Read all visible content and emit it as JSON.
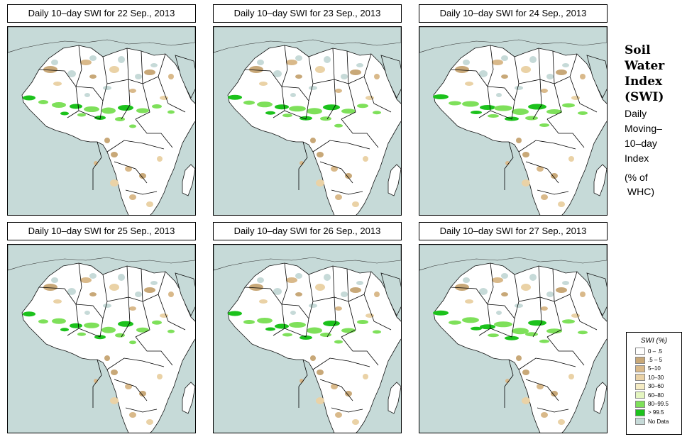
{
  "panels": [
    {
      "title": "Daily 10–day SWI for  22 Sep., 2013"
    },
    {
      "title": "Daily 10–day SWI for  23 Sep., 2013"
    },
    {
      "title": "Daily 10–day SWI for  24 Sep., 2013"
    },
    {
      "title": "Daily 10–day SWI for  25 Sep., 2013"
    },
    {
      "title": "Daily 10–day SWI for  26 Sep., 2013"
    },
    {
      "title": "Daily 10–day SWI for  27 Sep., 2013"
    }
  ],
  "side": {
    "title_lines": [
      "Soil",
      "Water",
      "Index",
      "(SWI)"
    ],
    "sub_lines": [
      "Daily",
      "Moving–",
      "10–day",
      "Index"
    ],
    "unit_lines": [
      "(% of",
      " WHC)"
    ]
  },
  "legend": {
    "title": "SWI (%)",
    "items": [
      {
        "label": "0 – .5",
        "color": "#ffffff"
      },
      {
        "label": ".5 – 5",
        "color": "#c8a878"
      },
      {
        "label": "5–10",
        "color": "#d9b98a"
      },
      {
        "label": "10–30",
        "color": "#ead2a6"
      },
      {
        "label": "30–60",
        "color": "#f5ecc4"
      },
      {
        "label": "60–80",
        "color": "#e4f5c0"
      },
      {
        "label": "80–99.5",
        "color": "#7ee05a"
      },
      {
        "label": "> 99.5",
        "color": "#1cc21c"
      },
      {
        "label": "No Data",
        "color": "#c6dad8"
      }
    ]
  },
  "colors": {
    "ocean": "#c6dad8",
    "land": "#ffffff",
    "border": "#000000"
  }
}
